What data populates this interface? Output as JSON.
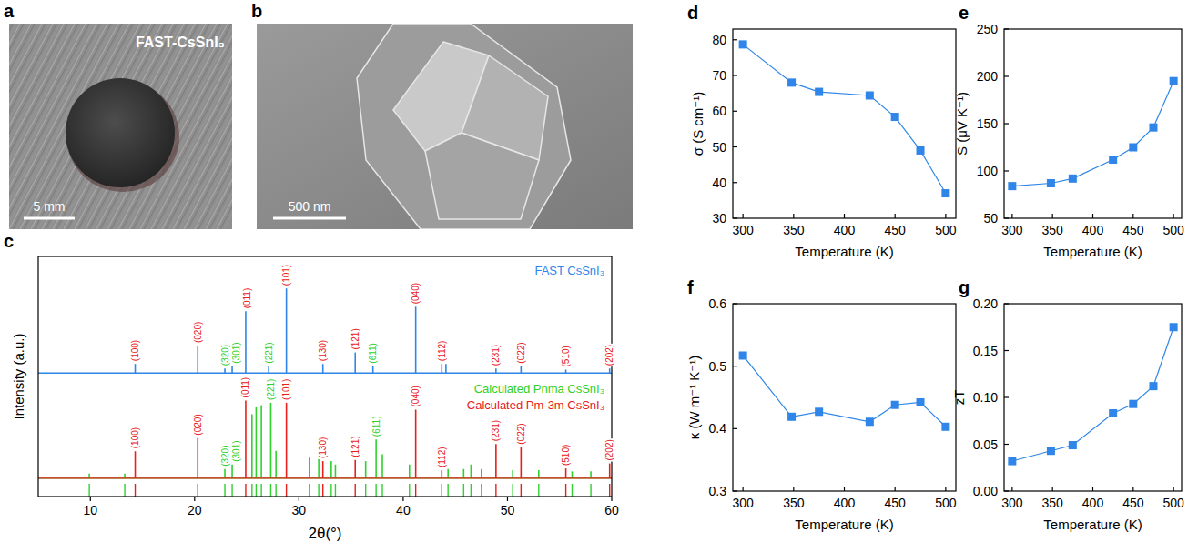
{
  "images": [
    {
      "label": "a",
      "caption": "FAST-CsSnI₃",
      "scale_bar": "5 mm"
    },
    {
      "label": "b",
      "scale_bar": "500 nm"
    }
  ],
  "chart_data": [
    {
      "label": "c",
      "type": "stick",
      "x_label": "2θ(°)",
      "y_label": "Intensity (a.u.)",
      "xlim": [
        5,
        60
      ],
      "xticks": [
        10,
        20,
        30,
        40,
        50,
        60
      ],
      "ylim": [
        0,
        105
      ],
      "tick_labels": "x",
      "legend": "right",
      "series": [
        {
          "name": "FAST CsSnI₃",
          "color": "#2f86e8",
          "baseline": 54,
          "x": [
            14.3,
            20.3,
            22.9,
            23.6,
            24.9,
            27.1,
            28.8,
            32.3,
            35.4,
            37.1,
            41.2,
            43.7,
            44.1,
            48.9,
            51.3,
            55.6,
            59.8
          ],
          "values": [
            58,
            66,
            56,
            57,
            81,
            57,
            91,
            58,
            63,
            57,
            83,
            58,
            58,
            56,
            57,
            55.5,
            56
          ],
          "labels": [
            "(100)",
            "(020)",
            "(320)",
            "(301)",
            "(011)",
            "(221)",
            "(101)",
            "(130)",
            "(121)",
            "(611)",
            "(040)",
            "(112)",
            null,
            "(231)",
            "(022)",
            "(510)",
            "(202)"
          ]
        },
        {
          "name": "Calculated Pnma CsSnI₃",
          "color": "#2ed12e",
          "baseline": 8,
          "x": [
            9.9,
            13.3,
            22.9,
            23.6,
            25.5,
            25.9,
            26.4,
            27.3,
            27.8,
            31.0,
            31.9,
            33.1,
            33.5,
            36.4,
            37.4,
            38.0,
            40.6,
            44.3,
            45.8,
            46.5,
            47.5,
            50.5,
            53.0,
            56.2,
            58.0
          ],
          "values": [
            10,
            10,
            12,
            14,
            36,
            39,
            40,
            41,
            20,
            17,
            17,
            15.5,
            14,
            15.5,
            25,
            18.5,
            14,
            12,
            12,
            14,
            12,
            11.5,
            11.5,
            11,
            11
          ],
          "labels": [
            null,
            null,
            "(320)",
            "(301)",
            null,
            null,
            null,
            "(221)",
            null,
            null,
            null,
            null,
            null,
            null,
            "(611)",
            null,
            null,
            null,
            null,
            null,
            null,
            null,
            null,
            null,
            null
          ]
        },
        {
          "name": "Calculated Pm-3m CsSnI₃",
          "color": "#e8201c",
          "baseline": 8,
          "x": [
            14.3,
            20.3,
            24.9,
            28.8,
            32.3,
            35.4,
            41.2,
            43.7,
            48.9,
            51.3,
            55.6,
            59.8
          ],
          "values": [
            19.8,
            25.6,
            42,
            41,
            15.5,
            16,
            38,
            11.5,
            23,
            21.6,
            12.3,
            14.5
          ],
          "labels": [
            "(100)",
            "(020)",
            "(011)",
            "(101)",
            "(130)",
            "(121)",
            "(040)",
            "(112)",
            "(231)",
            "(022)",
            "(510)",
            "(202)"
          ]
        }
      ]
    },
    {
      "label": "d",
      "type": "line",
      "x_label": "Temperature (K)",
      "y_label": "σ (S cm⁻¹)",
      "x": [
        300,
        348,
        375,
        425,
        450,
        475,
        500
      ],
      "values": [
        78.7,
        68,
        65.4,
        64.4,
        58.4,
        49,
        37
      ],
      "xlim": [
        290,
        510
      ],
      "xticks": [
        300,
        350,
        400,
        450,
        500
      ],
      "ylim": [
        30,
        83
      ],
      "yticks": [
        30,
        40,
        50,
        60,
        70,
        80
      ],
      "color": "#2f86e8",
      "marker": "square"
    },
    {
      "label": "e",
      "type": "line",
      "x_label": "Temperature (K)",
      "y_label": "S (μV K⁻¹)",
      "x": [
        300,
        348,
        375,
        425,
        450,
        475,
        500
      ],
      "values": [
        84,
        87,
        92,
        112,
        125,
        146,
        195
      ],
      "xlim": [
        290,
        510
      ],
      "xticks": [
        300,
        350,
        400,
        450,
        500
      ],
      "ylim": [
        50,
        250
      ],
      "yticks": [
        50,
        100,
        150,
        200,
        250
      ],
      "color": "#2f86e8",
      "marker": "square"
    },
    {
      "label": "f",
      "type": "line",
      "x_label": "Temperature (K)",
      "y_label": "κ (W m⁻¹ K⁻¹)",
      "x": [
        300,
        348,
        375,
        425,
        450,
        475,
        500
      ],
      "values": [
        0.517,
        0.419,
        0.427,
        0.411,
        0.438,
        0.442,
        0.403
      ],
      "xlim": [
        290,
        510
      ],
      "xticks": [
        300,
        350,
        400,
        450,
        500
      ],
      "ylim": [
        0.3,
        0.6
      ],
      "yticks": [
        0.3,
        0.4,
        0.5,
        0.6
      ],
      "color": "#2f86e8",
      "marker": "square"
    },
    {
      "label": "g",
      "type": "line",
      "x_label": "Temperature (K)",
      "y_label": "zT",
      "x": [
        300,
        348,
        375,
        425,
        450,
        475,
        500
      ],
      "values": [
        0.032,
        0.043,
        0.049,
        0.083,
        0.093,
        0.112,
        0.175
      ],
      "xlim": [
        290,
        510
      ],
      "xticks": [
        300,
        350,
        400,
        450,
        500
      ],
      "ylim": [
        0,
        0.2
      ],
      "yticks": [
        {
          "value": 0,
          "label": "0.00"
        },
        {
          "value": 0.05,
          "label": "0.05"
        },
        {
          "value": 0.1,
          "label": "0.10"
        },
        {
          "value": 0.15,
          "label": "0.15"
        },
        {
          "value": 0.2,
          "label": "0.20"
        }
      ],
      "color": "#2f86e8",
      "marker": "square"
    }
  ]
}
